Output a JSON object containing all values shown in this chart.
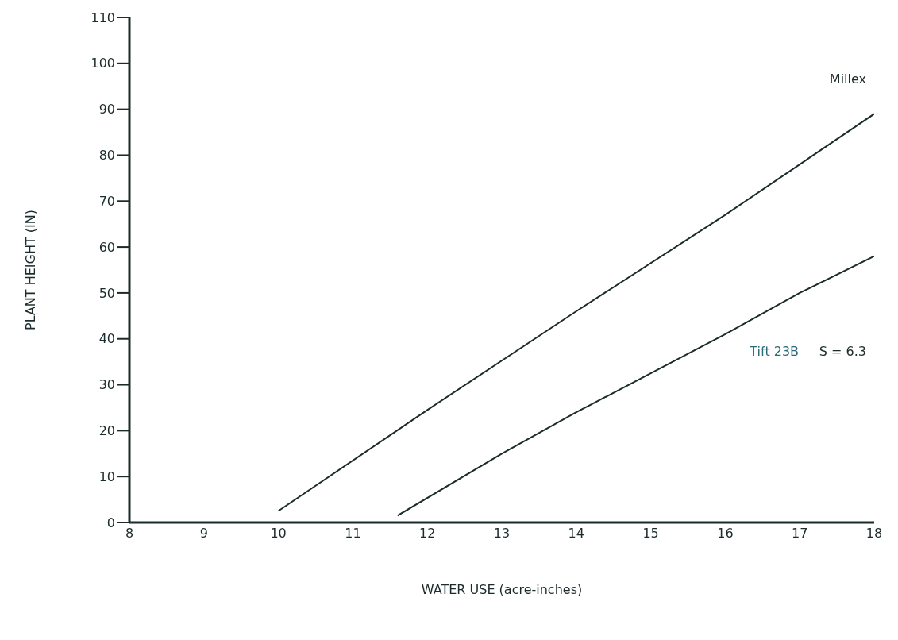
{
  "chart_data": {
    "type": "line",
    "xlabel": "WATER USE (acre-inches)",
    "ylabel": "PLANT HEIGHT (IN)",
    "series": [
      {
        "name": "Millex",
        "color": "#1c2b2b",
        "x": [
          10,
          12,
          14,
          16,
          18
        ],
        "values": [
          2.5,
          24.5,
          46,
          67,
          89
        ]
      },
      {
        "name": "Tift 23B",
        "color": "#1c2b2b",
        "x": [
          11.6,
          13,
          14,
          15,
          16,
          17,
          18
        ],
        "values": [
          1.5,
          15,
          24,
          32.5,
          41,
          50,
          58
        ]
      }
    ],
    "annotations": [
      "S = 6.3"
    ],
    "xlim": [
      8,
      18
    ],
    "xticks": [
      8,
      9,
      10,
      11,
      12,
      13,
      14,
      15,
      16,
      17,
      18
    ],
    "ylim": [
      0,
      110
    ],
    "yticks": [
      0,
      10,
      20,
      30,
      40,
      50,
      60,
      70,
      80,
      90,
      100,
      110
    ],
    "grid": false,
    "legend": false,
    "marker": "none",
    "line_style": "solid"
  }
}
